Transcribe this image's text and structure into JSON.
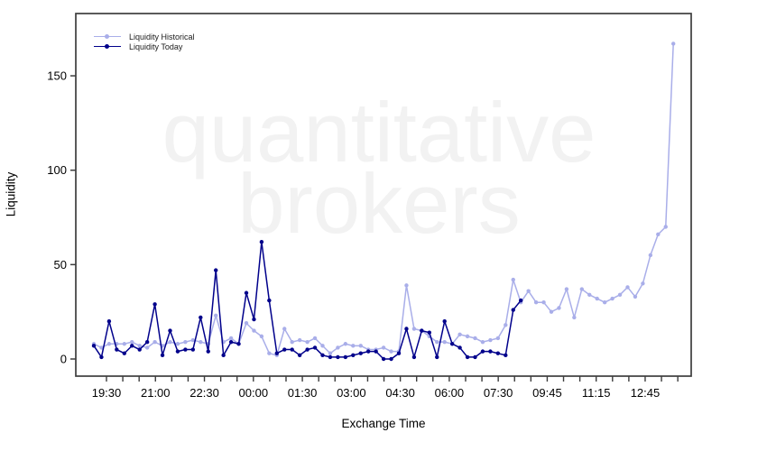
{
  "watermark": {
    "line1": "quantitative",
    "line2": "brokers",
    "color": "#f2f2f2"
  },
  "chart_data": {
    "type": "line",
    "title": "",
    "xlabel": "Exchange Time",
    "ylabel": "Liquidity",
    "x_tick_labels": [
      "19:30",
      "21:00",
      "22:30",
      "00:00",
      "01:30",
      "03:00",
      "04:30",
      "06:00",
      "07:30",
      "09:45",
      "11:15",
      "12:45"
    ],
    "minor_ticks_per_label_interval": 3,
    "y_ticks": [
      0,
      50,
      100,
      150
    ],
    "ylim": [
      0,
      170
    ],
    "grid": false,
    "legend_position": "top-left",
    "axis_color": "#3d3d3d",
    "tick_label_color": "#000000",
    "series": [
      {
        "name": "Liquidity Historical",
        "color": "#a9aee9",
        "values": [
          8,
          6,
          8,
          8,
          8,
          9,
          7,
          6,
          9,
          7,
          9,
          8,
          9,
          10,
          9,
          8,
          23,
          9,
          11,
          8,
          19,
          15,
          12,
          3,
          2,
          16,
          9,
          10,
          9,
          11,
          7,
          3,
          6,
          8,
          7,
          7,
          5,
          5,
          6,
          4,
          4,
          39,
          16,
          15,
          12,
          9,
          9,
          8,
          13,
          12,
          11,
          9,
          10,
          11,
          18,
          42,
          30,
          36,
          30,
          30,
          25,
          27,
          37,
          22,
          37,
          34,
          32,
          30,
          32,
          34,
          38,
          33,
          40,
          55,
          66,
          70,
          167
        ]
      },
      {
        "name": "Liquidity Today",
        "color": "#00008b",
        "values": [
          7,
          1,
          20,
          5,
          3,
          7,
          5,
          9,
          29,
          2,
          15,
          4,
          5,
          5,
          22,
          4,
          47,
          2,
          9,
          8,
          35,
          21,
          62,
          31,
          3,
          5,
          5,
          2,
          5,
          6,
          2,
          1,
          1,
          1,
          2,
          3,
          4,
          4,
          0,
          0,
          3,
          16,
          1,
          15,
          14,
          1,
          20,
          8,
          6,
          1,
          1,
          4,
          4,
          3,
          2,
          26,
          31
        ]
      }
    ]
  }
}
